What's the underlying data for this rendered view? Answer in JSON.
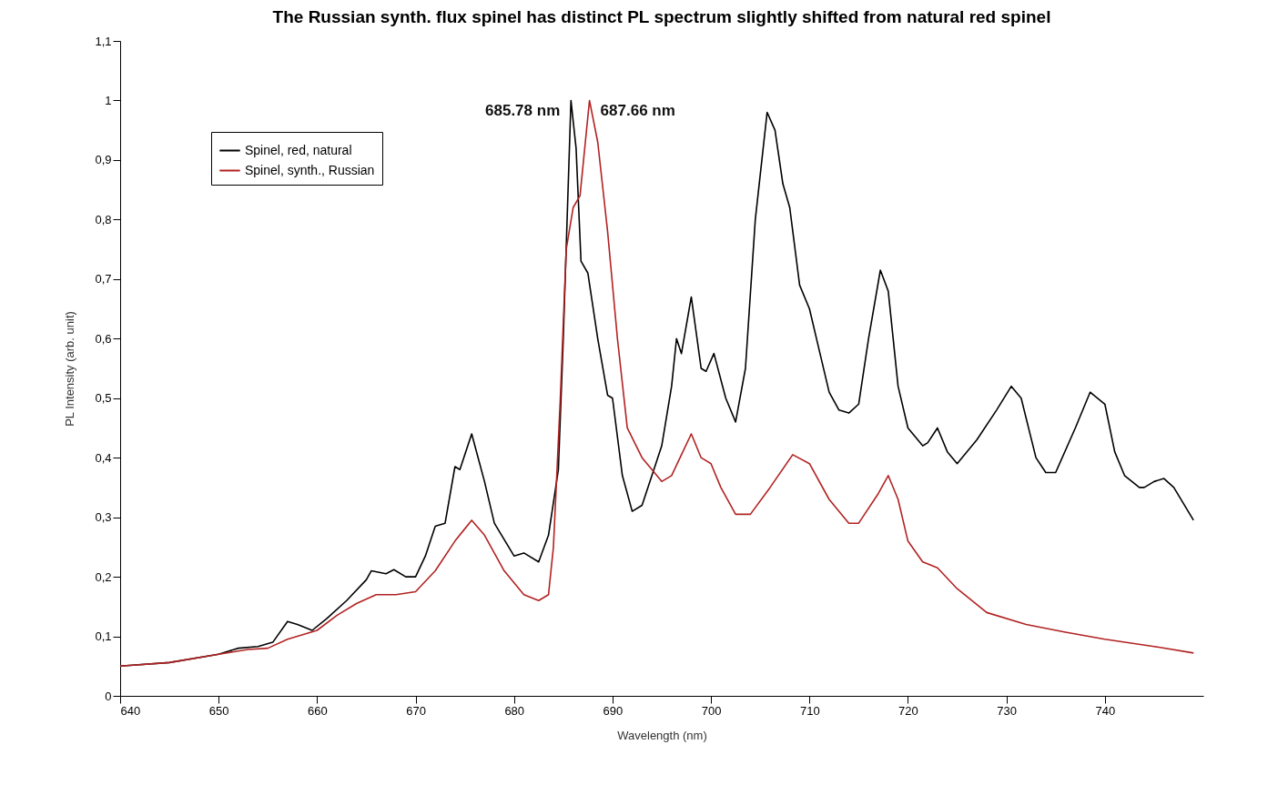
{
  "chart_data": {
    "type": "line",
    "title": "The Russian synth. flux spinel has distinct PL spectrum slightly shifted from natural red spinel",
    "xlabel": "Wavelength (nm)",
    "ylabel": "PL Intensity (arb. unit)",
    "xlim": [
      640,
      750
    ],
    "xticks": [
      640,
      650,
      660,
      670,
      680,
      690,
      700,
      710,
      720,
      730,
      740
    ],
    "ylim": [
      0,
      1.1
    ],
    "yticks": [
      0,
      {
        "value": 0.1,
        "label": "0,1"
      },
      {
        "value": 0.2,
        "label": "0,2"
      },
      {
        "value": 0.3,
        "label": "0,3"
      },
      {
        "value": 0.4,
        "label": "0,4"
      },
      {
        "value": 0.5,
        "label": "0,5"
      },
      {
        "value": 0.6,
        "label": "0,6"
      },
      {
        "value": 0.7,
        "label": "0,7"
      },
      {
        "value": 0.8,
        "label": "0,8"
      },
      {
        "value": 0.9,
        "label": "0,9"
      },
      1,
      {
        "value": 1.1,
        "label": "1,1"
      }
    ],
    "grid": false,
    "legend": "top left",
    "line_style": "solid",
    "marker": "none",
    "annotations": [
      {
        "text": "685.78 nm",
        "x": 685.78,
        "y": 1.0
      },
      {
        "text": "687.66 nm",
        "x": 687.66,
        "y": 1.0
      }
    ],
    "series": [
      {
        "name": "Spinel, red, natural",
        "color": "#000000",
        "x": [
          640,
          645,
          650,
          652,
          654,
          655.5,
          657,
          658,
          659.5,
          661,
          663,
          665,
          665.5,
          667,
          667.8,
          669,
          670,
          671,
          672,
          673,
          674,
          674.5,
          675.7,
          677,
          678,
          680,
          681,
          682.5,
          683.5,
          684.5,
          685,
          685.78,
          686.3,
          686.8,
          687.5,
          688.5,
          689.5,
          690,
          691,
          692,
          693,
          695,
          696,
          696.5,
          697,
          698,
          699,
          699.5,
          700.3,
          701.5,
          702.5,
          703.5,
          704.5,
          705.7,
          706.5,
          707.3,
          708,
          709,
          710,
          711,
          712,
          713,
          714,
          715,
          716,
          717.2,
          718,
          719,
          720,
          721.5,
          722,
          723,
          724,
          725,
          727,
          729,
          730.5,
          731.5,
          733,
          734,
          735,
          737,
          738.5,
          740,
          741,
          742,
          743.5,
          744,
          745,
          746,
          747,
          749
        ],
        "values": [
          0.05,
          0.056,
          0.07,
          0.08,
          0.083,
          0.09,
          0.125,
          0.12,
          0.11,
          0.13,
          0.16,
          0.195,
          0.21,
          0.205,
          0.212,
          0.2,
          0.2,
          0.235,
          0.285,
          0.29,
          0.385,
          0.38,
          0.44,
          0.36,
          0.29,
          0.235,
          0.24,
          0.225,
          0.27,
          0.38,
          0.6,
          1.0,
          0.92,
          0.73,
          0.71,
          0.6,
          0.505,
          0.5,
          0.37,
          0.31,
          0.32,
          0.42,
          0.52,
          0.6,
          0.575,
          0.67,
          0.55,
          0.545,
          0.575,
          0.5,
          0.46,
          0.55,
          0.8,
          0.98,
          0.95,
          0.86,
          0.82,
          0.69,
          0.65,
          0.58,
          0.51,
          0.48,
          0.475,
          0.49,
          0.6,
          0.715,
          0.68,
          0.52,
          0.45,
          0.42,
          0.425,
          0.45,
          0.41,
          0.39,
          0.43,
          0.48,
          0.52,
          0.5,
          0.4,
          0.375,
          0.375,
          0.45,
          0.51,
          0.49,
          0.41,
          0.37,
          0.35,
          0.35,
          0.36,
          0.365,
          0.35,
          0.295
        ]
      },
      {
        "name": "Spinel, synth., Russian",
        "color": "#b22222",
        "x": [
          640,
          645,
          650,
          653,
          655,
          657,
          659,
          660,
          662,
          664,
          666,
          668,
          670,
          672,
          674,
          675.7,
          677,
          679,
          681,
          682.5,
          683.5,
          684,
          684.7,
          685.3,
          686,
          686.7,
          687.66,
          688.5,
          689.5,
          690.5,
          691.5,
          693,
          695,
          696,
          697,
          698,
          699,
          700,
          701,
          702.5,
          704,
          706,
          708.3,
          710,
          712,
          714,
          715,
          717,
          718,
          719,
          720,
          721.5,
          723,
          725,
          728,
          732,
          736,
          740,
          745,
          749
        ],
        "values": [
          0.05,
          0.056,
          0.07,
          0.078,
          0.08,
          0.095,
          0.105,
          0.11,
          0.135,
          0.155,
          0.17,
          0.17,
          0.175,
          0.21,
          0.26,
          0.295,
          0.27,
          0.21,
          0.17,
          0.16,
          0.17,
          0.25,
          0.5,
          0.75,
          0.82,
          0.84,
          1.0,
          0.93,
          0.78,
          0.6,
          0.45,
          0.4,
          0.36,
          0.37,
          0.405,
          0.44,
          0.4,
          0.39,
          0.35,
          0.305,
          0.305,
          0.35,
          0.405,
          0.39,
          0.33,
          0.29,
          0.29,
          0.34,
          0.37,
          0.33,
          0.26,
          0.225,
          0.215,
          0.18,
          0.14,
          0.12,
          0.107,
          0.095,
          0.083,
          0.072
        ]
      }
    ]
  }
}
